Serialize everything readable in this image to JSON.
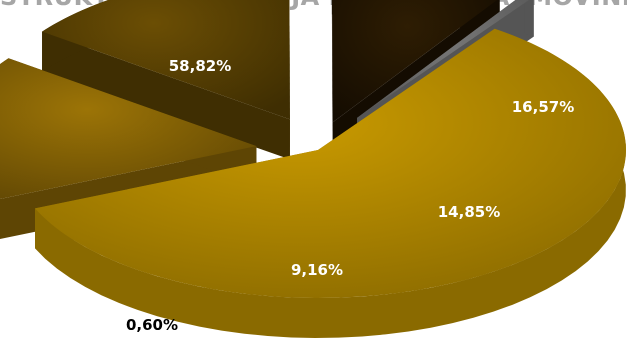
{
  "chart_data": {
    "type": "pie",
    "title": "STRUKTURA ULAGANJA PO VRSTAMA IMOVINE",
    "categories": [
      "",
      "",
      "",
      "",
      ""
    ],
    "values": [
      58.82,
      16.57,
      14.85,
      9.16,
      0.6
    ],
    "labels": [
      "58,82%",
      "16,57%",
      "14,85%",
      "9,16%",
      "0,60%"
    ],
    "colors": [
      "#c99a00",
      "#9c7406",
      "#6b4e04",
      "#2e1d03",
      "#7a7a7a"
    ],
    "side_colors": [
      "#8a6a00",
      "#5e4504",
      "#3f2e02",
      "#140c01",
      "#555555"
    ],
    "label_colors": [
      "#ffffff",
      "#ffffff",
      "#ffffff",
      "#ffffff",
      "#000000"
    ],
    "legend": "none",
    "style": "3d-exploded"
  }
}
